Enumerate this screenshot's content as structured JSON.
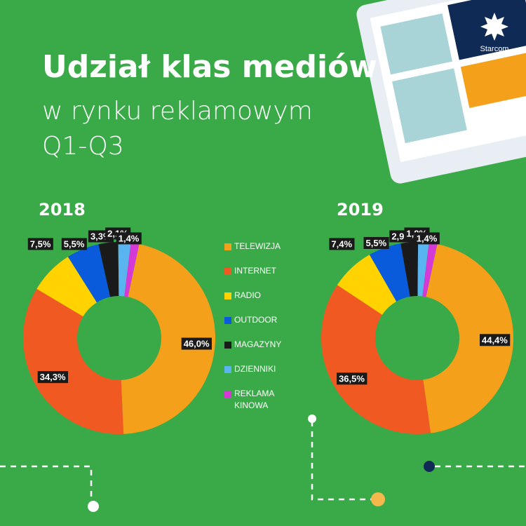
{
  "title": "Udział klas mediów",
  "subtitle_lines": [
    "w rynku reklamowym",
    "Q1-Q3"
  ],
  "brand": "Starcom",
  "chart_data": [
    {
      "type": "pie",
      "donut": true,
      "title": "2018",
      "categories": [
        "TELEWIZJA",
        "INTERNET",
        "RADIO",
        "OUTDOOR",
        "MAGAZYNY",
        "DZIENNIKI",
        "REKLAMA KINOWA"
      ],
      "values": [
        46.0,
        34.3,
        7.5,
        5.5,
        3.3,
        2.1,
        1.4
      ],
      "value_labels": [
        "46,0%",
        "34,3%",
        "7,5%",
        "5,5%",
        "3,3%",
        "2,1%",
        "1,4%"
      ],
      "colors": [
        "#f5a01a",
        "#f05a22",
        "#ffd200",
        "#0a5adc",
        "#1a1a1a",
        "#5ab4f0",
        "#d63ad6"
      ]
    },
    {
      "type": "pie",
      "donut": true,
      "title": "2019",
      "categories": [
        "TELEWIZJA",
        "INTERNET",
        "RADIO",
        "OUTDOOR",
        "MAGAZYNY",
        "DZIENNIKI",
        "REKLAMA KINOWA"
      ],
      "values": [
        44.4,
        36.5,
        7.4,
        5.5,
        2.9,
        1.8,
        1.4
      ],
      "value_labels": [
        "44,4%",
        "36,5%",
        "7,4%",
        "5,5%",
        "2,9%",
        "1,8%",
        "1,4%"
      ],
      "colors": [
        "#f5a01a",
        "#f05a22",
        "#ffd200",
        "#0a5adc",
        "#1a1a1a",
        "#5ab4f0",
        "#d63ad6"
      ]
    }
  ]
}
